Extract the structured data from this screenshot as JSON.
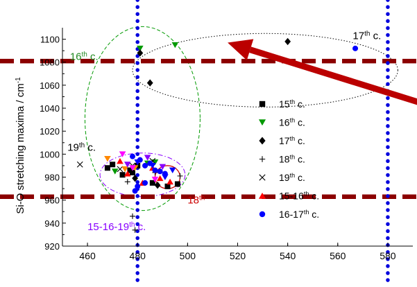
{
  "chart_data": {
    "type": "scatter",
    "title": "",
    "xlabel": "",
    "ylabel": "Si-O  stretching maxima  / cm",
    "ylabel_sup": "-1",
    "xlim": [
      450,
      590
    ],
    "ylim": [
      920,
      1110
    ],
    "x_ticks": [
      460,
      480,
      500,
      520,
      540,
      560,
      580
    ],
    "y_ticks": [
      920,
      940,
      960,
      980,
      1000,
      1020,
      1040,
      1060,
      1080,
      1100
    ],
    "grid": false,
    "legend_position": "right",
    "series": [
      {
        "name": "15",
        "name_sup": "th",
        "name_suffix": " c.",
        "marker": "square",
        "color": "#000000",
        "points": [
          [
            468,
            988
          ],
          [
            470,
            991
          ],
          [
            474,
            982
          ],
          [
            477,
            986
          ],
          [
            478,
            984
          ],
          [
            480,
            990
          ],
          [
            486,
            975
          ],
          [
            492,
            972
          ],
          [
            496,
            974
          ]
        ]
      },
      {
        "name": "16",
        "name_sup": "th",
        "name_suffix": " c.",
        "marker": "triangle-down",
        "color": "#009900",
        "points": [
          [
            481,
            1092
          ],
          [
            495,
            1095
          ],
          [
            471,
            985
          ],
          [
            484,
            992
          ],
          [
            487,
            993
          ]
        ]
      },
      {
        "name": "17",
        "name_sup": "th",
        "name_suffix": " c.",
        "marker": "diamond",
        "color": "#000000",
        "points": [
          [
            481,
            1088
          ],
          [
            485,
            1062
          ],
          [
            540,
            1098
          ],
          [
            479,
            979
          ],
          [
            488,
            973
          ]
        ]
      },
      {
        "name": "18",
        "name_sup": "th",
        "name_suffix": " c.",
        "marker": "plus",
        "color": "#000000",
        "points": [
          [
            478,
            946
          ],
          [
            479,
            934
          ],
          [
            497,
            981
          ],
          [
            476,
            976
          ],
          [
            487,
            984
          ]
        ]
      },
      {
        "name": "19",
        "name_sup": "th",
        "name_suffix": " c.",
        "marker": "cross",
        "color": "#000000",
        "points": [
          [
            457,
            991
          ],
          [
            478,
            990
          ],
          [
            486,
            994
          ],
          [
            473,
            987
          ]
        ]
      },
      {
        "name": "15-16",
        "name_sup": "th",
        "name_suffix": " c.",
        "marker": "triangle-up",
        "color": "#ff0000",
        "points": [
          [
            473,
            994
          ],
          [
            476,
            983
          ],
          [
            482,
            975
          ],
          [
            486,
            988
          ],
          [
            489,
            979
          ],
          [
            493,
            976
          ]
        ]
      },
      {
        "name": "16-17",
        "name_sup": "th",
        "name_suffix": " c.",
        "marker": "circle",
        "color": "#0000ff",
        "points": [
          [
            567,
            1092
          ],
          [
            478,
            998
          ],
          [
            481,
            995
          ],
          [
            483,
            990
          ],
          [
            485,
            992
          ],
          [
            487,
            986
          ],
          [
            489,
            985
          ],
          [
            491,
            983
          ],
          [
            480,
            972
          ],
          [
            483,
            975
          ],
          [
            479,
            968
          ]
        ]
      },
      {
        "name": "",
        "marker": "triangle-down",
        "color": "#ff8800",
        "points": [
          [
            468,
            996
          ],
          [
            475,
            987
          ],
          [
            479,
            988
          ]
        ]
      },
      {
        "name": "",
        "marker": "triangle-down",
        "color": "#ff00ff",
        "points": [
          [
            474,
            1000
          ],
          [
            478,
            988
          ],
          [
            487,
            978
          ]
        ]
      },
      {
        "name": "",
        "marker": "triangle-down",
        "color": "#8800ff",
        "points": [
          [
            476,
            991
          ],
          [
            484,
            997
          ],
          [
            490,
            989
          ]
        ]
      },
      {
        "name": "",
        "marker": "triangle-down",
        "color": "#0000ff",
        "points": [
          [
            480,
            993
          ],
          [
            486,
            990
          ],
          [
            491,
            980
          ],
          [
            494,
            986
          ]
        ]
      }
    ],
    "reference_lines": [
      {
        "orientation": "horizontal",
        "value": 1081,
        "color": "#8b0000",
        "style": "dashed"
      },
      {
        "orientation": "horizontal",
        "value": 963,
        "color": "#8b0000",
        "style": "dashed"
      },
      {
        "orientation": "vertical",
        "value": 480,
        "color": "#0000dd",
        "style": "dotted"
      },
      {
        "orientation": "vertical",
        "value": 580,
        "color": "#0000dd",
        "style": "dotted"
      }
    ],
    "arrow": {
      "color": "#bb0000",
      "from": [
        600,
        1040
      ],
      "to": [
        516,
        1097
      ]
    },
    "ellipses": [
      {
        "cx": 531,
        "cy": 1073,
        "rx": 53,
        "ry": 32,
        "color": "#000000",
        "style": "dotted"
      },
      {
        "cx": 482,
        "cy": 1031,
        "rx": 23,
        "ry": 80,
        "color": "#009900",
        "style": "dashed"
      },
      {
        "cx": 482,
        "cy": 982,
        "rx": 17,
        "ry": 19,
        "color": "#8800ff",
        "style": "dashdot"
      },
      {
        "cx": 492,
        "cy": 980,
        "rx": 5,
        "ry": 10,
        "color": "#cc0000",
        "style": "solid"
      }
    ],
    "annotations": [
      {
        "id": "ann-17th",
        "text": "17",
        "sup": "th",
        "suffix": " c.",
        "x": 566,
        "y": 1100,
        "color": "#000000"
      },
      {
        "id": "ann-16th",
        "text": "16",
        "sup": "th",
        "suffix": " c.",
        "x": 453,
        "y": 1082,
        "color": "#228b22"
      },
      {
        "id": "ann-19th",
        "text": "19",
        "sup": "th",
        "suffix": " c.",
        "x": 452,
        "y": 1003,
        "color": "#000000"
      },
      {
        "id": "ann-18th",
        "text": "18",
        "sup": "th",
        "suffix": "",
        "x": 500,
        "y": 957,
        "color": "#cc0000"
      },
      {
        "id": "ann-15-16-19",
        "text": "15-16-19",
        "sup": "th",
        "suffix": " c.",
        "x": 460,
        "y": 934,
        "color": "#8800ff"
      }
    ]
  }
}
